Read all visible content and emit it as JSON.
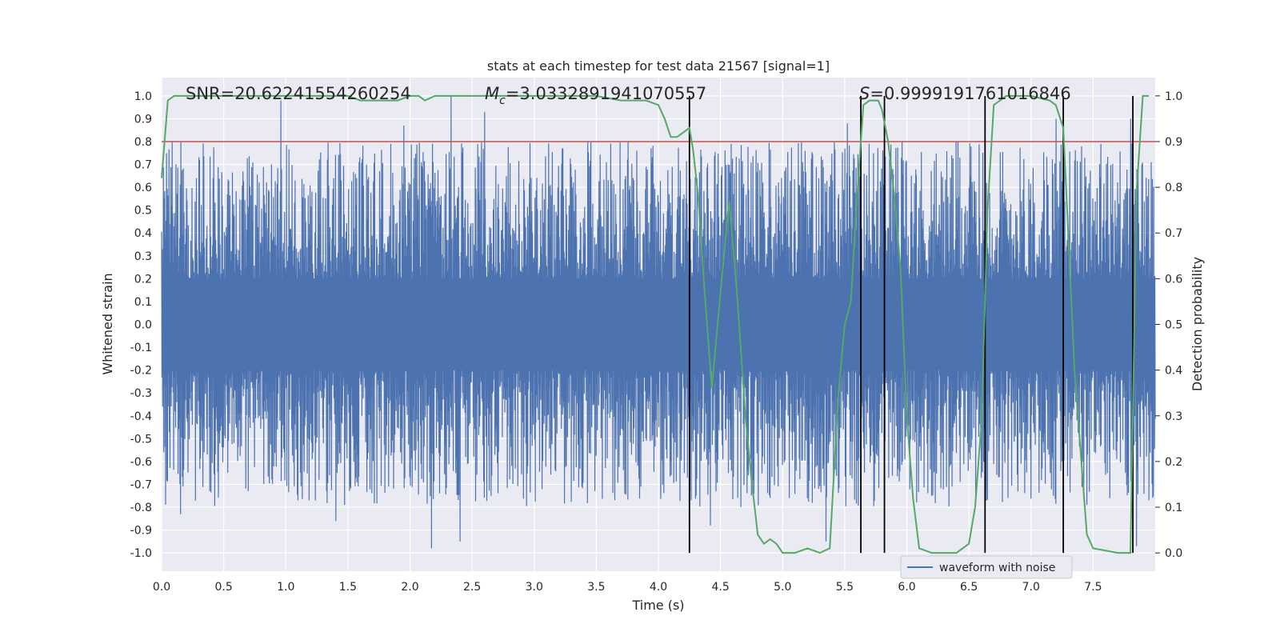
{
  "chart_data": {
    "type": "line",
    "title": "stats at each timestep for test data 21567 [signal=1]",
    "xlabel": "Time (s)",
    "ylabel": "Whitened strain",
    "y2label": "Detection probability",
    "xlim": [
      0.0,
      8.0
    ],
    "ylim": [
      -1.08,
      1.08
    ],
    "y2lim": [
      -0.04,
      1.04
    ],
    "xticks": [
      0.0,
      0.5,
      1.0,
      1.5,
      2.0,
      2.5,
      3.0,
      3.5,
      4.0,
      4.5,
      5.0,
      5.5,
      6.0,
      6.5,
      7.0,
      7.5
    ],
    "xtick_labels": [
      "0.0",
      "0.5",
      "1.0",
      "1.5",
      "2.0",
      "2.5",
      "3.0",
      "3.5",
      "4.0",
      "4.5",
      "5.0",
      "5.5",
      "6.0",
      "6.5",
      "7.0",
      "7.5"
    ],
    "yticks": [
      1.0,
      0.9,
      0.8,
      0.7,
      0.6,
      0.5,
      0.4,
      0.3,
      0.2,
      0.1,
      0.0,
      -0.1,
      -0.2,
      -0.3,
      -0.4,
      -0.5,
      -0.6,
      -0.7,
      -0.8,
      -0.9,
      -1.0
    ],
    "ytick_labels": [
      "1.0",
      "0.9",
      "0.8",
      "0.7",
      "0.6",
      "0.5",
      "0.4",
      "0.3",
      "0.2",
      "0.1",
      "0.0",
      "-0.1",
      "-0.2",
      "-0.3",
      "-0.4",
      "-0.5",
      "-0.6",
      "-0.7",
      "-0.8",
      "-0.9",
      "-1.0"
    ],
    "y2ticks": [
      1.0,
      0.9,
      0.8,
      0.7,
      0.6,
      0.5,
      0.4,
      0.3,
      0.2,
      0.1,
      0.0
    ],
    "y2tick_labels": [
      "1.0",
      "0.9",
      "0.8",
      "0.7",
      "0.6",
      "0.5",
      "0.4",
      "0.3",
      "0.2",
      "0.1",
      "0.0"
    ],
    "grid": true,
    "annotations": {
      "snr": "SNR=20.62241554260254",
      "mc_symbol": "M",
      "mc_sub": "c",
      "mc_value": "=3.0332891941070557",
      "s_symbol": "S",
      "s_value": "=0.9999191761016846"
    },
    "legend": {
      "label": "waveform with noise",
      "placement": "lower-center-right"
    },
    "threshold": {
      "y2": 0.9,
      "color": "#c44e52"
    },
    "detection_lines_x": [
      4.25,
      5.63,
      5.82,
      6.63,
      7.26,
      7.82
    ],
    "detection_lines_y2": [
      0.0,
      1.0
    ],
    "waveform": {
      "name": "waveform with noise",
      "color": "#4c72b0",
      "t_start": 0.0,
      "t_end": 8.0,
      "envelope_upper": 0.5,
      "envelope_lower": -0.5,
      "peaks": [
        {
          "t": 0.96,
          "y": 0.98
        },
        {
          "t": 2.33,
          "y": 1.0
        },
        {
          "t": 2.6,
          "y": 0.93
        },
        {
          "t": 1.95,
          "y": 0.87
        },
        {
          "t": 2.17,
          "y": -0.98
        },
        {
          "t": 2.4,
          "y": -0.95
        },
        {
          "t": 0.15,
          "y": -0.83
        },
        {
          "t": 1.4,
          "y": -0.86
        },
        {
          "t": 4.42,
          "y": -0.88
        },
        {
          "t": 5.35,
          "y": -0.95
        },
        {
          "t": 7.85,
          "y": -0.97
        },
        {
          "t": 5.52,
          "y": 0.88
        },
        {
          "t": 7.2,
          "y": 0.9
        },
        {
          "t": 7.8,
          "y": 0.9
        },
        {
          "t": 6.2,
          "y": -0.75
        }
      ]
    },
    "detection_probability": {
      "name": "Detection probability",
      "color": "#55a868",
      "x": [
        0.0,
        0.05,
        0.1,
        0.2,
        0.5,
        1.0,
        1.3,
        1.5,
        1.6,
        1.9,
        2.0,
        2.07,
        2.12,
        2.2,
        3.0,
        3.5,
        3.7,
        3.9,
        4.0,
        4.05,
        4.1,
        4.15,
        4.2,
        4.25,
        4.28,
        4.32,
        4.37,
        4.43,
        4.5,
        4.57,
        4.63,
        4.7,
        4.75,
        4.8,
        4.85,
        4.9,
        4.95,
        5.0,
        5.1,
        5.2,
        5.3,
        5.38,
        5.45,
        5.5,
        5.55,
        5.6,
        5.63,
        5.65,
        5.7,
        5.77,
        5.8,
        5.85,
        5.9,
        5.95,
        6.0,
        6.05,
        6.1,
        6.2,
        6.3,
        6.4,
        6.5,
        6.55,
        6.6,
        6.63,
        6.65,
        6.7,
        6.8,
        7.0,
        7.15,
        7.2,
        7.26,
        7.3,
        7.35,
        7.45,
        7.5,
        7.7,
        7.8,
        7.82,
        7.85,
        7.9,
        7.95
      ],
      "y": [
        0.82,
        0.99,
        1.0,
        1.0,
        1.0,
        1.0,
        1.0,
        1.0,
        0.99,
        0.99,
        1.0,
        1.0,
        0.99,
        1.0,
        1.0,
        1.0,
        0.99,
        0.99,
        0.98,
        0.95,
        0.91,
        0.91,
        0.92,
        0.93,
        0.88,
        0.78,
        0.58,
        0.36,
        0.57,
        0.77,
        0.58,
        0.3,
        0.16,
        0.04,
        0.02,
        0.03,
        0.02,
        0.0,
        0.0,
        0.01,
        0.0,
        0.01,
        0.35,
        0.5,
        0.55,
        0.78,
        0.9,
        0.98,
        0.99,
        0.99,
        0.97,
        0.9,
        0.78,
        0.62,
        0.3,
        0.12,
        0.01,
        0.0,
        0.0,
        0.0,
        0.02,
        0.1,
        0.28,
        0.55,
        0.75,
        0.98,
        1.0,
        1.0,
        0.99,
        0.98,
        0.93,
        0.7,
        0.4,
        0.04,
        0.01,
        0.0,
        0.0,
        0.3,
        0.79,
        1.0,
        1.0
      ]
    }
  }
}
